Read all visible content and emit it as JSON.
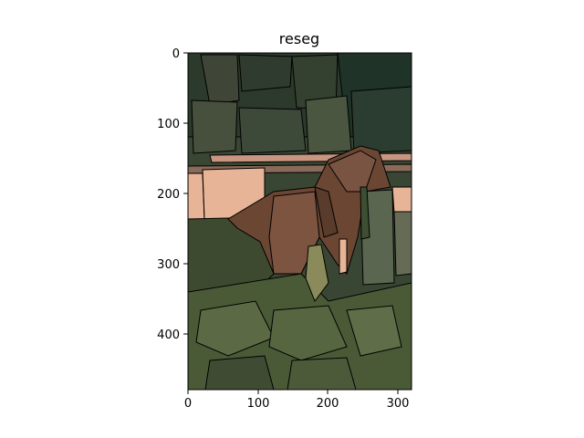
{
  "figure": {
    "title": "reseg",
    "background": "#ffffff"
  },
  "chart_data": {
    "type": "heatmap",
    "title": "reseg",
    "content": "image",
    "image_description": "segmented horse photo",
    "xlim": [
      0,
      320
    ],
    "ylim": [
      480,
      0
    ],
    "x_ticks": [
      0,
      100,
      200,
      300
    ],
    "y_ticks": [
      0,
      100,
      200,
      300,
      400
    ],
    "grid": false,
    "colors": {
      "forest_dark": "#1f3328",
      "forest_mid": "#3a4634",
      "grass_dark": "#3e4a30",
      "grass_mid": "#4a5a37",
      "grass_light": "#5b6a44",
      "horse_brown": "#6a4633",
      "horse_mid": "#7c5440",
      "fence_peach": "#e8b497",
      "fence_rose": "#c89580",
      "olive": "#8a8a5a",
      "outline": "#000000"
    }
  }
}
